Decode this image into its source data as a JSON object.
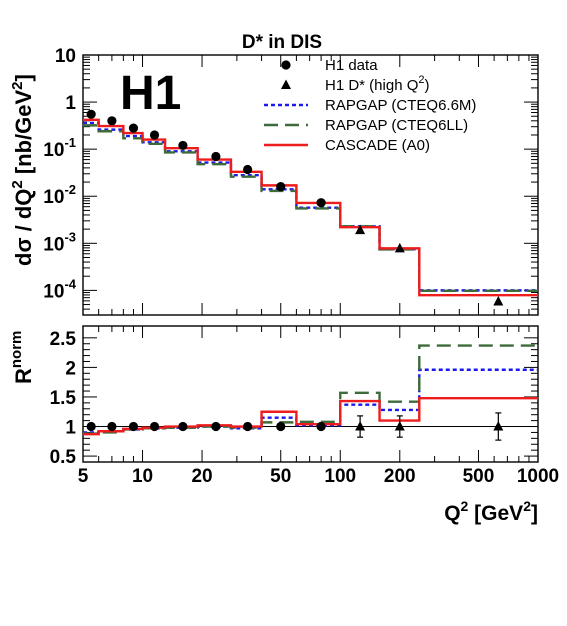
{
  "chart_data": {
    "type": "scatter",
    "title": "D* in DIS",
    "logo": "H1",
    "xlabel": "Q",
    "xlabel_sup": "2",
    "xlabel_unit": " [GeV",
    "xlabel_unit_sup": "2",
    "xlabel_unit_end": "]",
    "xscale": "log",
    "xlim": [
      5,
      1000
    ],
    "x_ticks": [
      5,
      10,
      20,
      50,
      100,
      200,
      500,
      1000
    ],
    "x_tick_labels": [
      "5",
      "10",
      "20",
      "50",
      "100",
      "200",
      "500",
      "1000"
    ],
    "top_panel": {
      "ylabel": "dσ / dQ",
      "ylabel_sup": "2",
      "ylabel_unit": " [nb/GeV",
      "ylabel_unit_sup": "2",
      "ylabel_unit_end": "]",
      "yscale": "log",
      "ylim": [
        3e-05,
        10
      ],
      "y_tick_labels": [
        {
          "base": "10",
          "exp": "",
          "value": 10
        },
        {
          "base": "1",
          "exp": "",
          "value": 1
        },
        {
          "base": "10",
          "exp": "-1",
          "value": 0.1
        },
        {
          "base": "10",
          "exp": "-2",
          "value": 0.01
        },
        {
          "base": "10",
          "exp": "-3",
          "value": 0.001
        },
        {
          "base": "10",
          "exp": "-4",
          "value": 0.0001
        }
      ],
      "bin_edges": [
        5,
        6,
        8,
        10,
        13,
        19,
        28,
        40,
        60,
        100,
        158,
        251,
        1000
      ],
      "series": [
        {
          "name": "H1 data",
          "kind": "points",
          "marker": "circle",
          "color": "#000000",
          "x": [
            5.5,
            7,
            9,
            11.5,
            16,
            23.5,
            34,
            50,
            80
          ],
          "y": [
            0.55,
            0.4,
            0.28,
            0.2,
            0.12,
            0.07,
            0.037,
            0.016,
            0.0073
          ]
        },
        {
          "name": "H1 D* (high Q",
          "name_sup": "2",
          "name_end": ")",
          "kind": "points",
          "marker": "triangle",
          "color": "#000000",
          "x": [
            126,
            200,
            630
          ],
          "y": [
            0.0019,
            0.00078,
            5.8e-05
          ]
        },
        {
          "name": "RAPGAP (CTEQ6.6M)",
          "kind": "histogram",
          "style": "dotted",
          "color": "#1a1aee",
          "values": [
            0.36,
            0.26,
            0.19,
            0.14,
            0.09,
            0.052,
            0.028,
            0.014,
            0.0057,
            0.0023,
            0.00075,
            0.0001
          ]
        },
        {
          "name": "RAPGAP (CTEQ6LL)",
          "kind": "histogram",
          "style": "dashed",
          "color": "#3d6b3a",
          "values": [
            0.32,
            0.24,
            0.17,
            0.13,
            0.085,
            0.048,
            0.026,
            0.013,
            0.0055,
            0.0023,
            0.00074,
            9.8e-05
          ]
        },
        {
          "name": "CASCADE (A0)",
          "kind": "histogram",
          "style": "solid",
          "color": "#ee1c1c",
          "values": [
            0.42,
            0.31,
            0.22,
            0.16,
            0.105,
            0.06,
            0.033,
            0.017,
            0.0072,
            0.0022,
            0.00078,
            7.9e-05
          ]
        }
      ]
    },
    "bottom_panel": {
      "ylabel": "R",
      "ylabel_sup": "norm",
      "yscale": "linear",
      "ylim": [
        0.4,
        2.7
      ],
      "y_ticks": [
        0.5,
        1,
        1.5,
        2,
        2.5
      ],
      "y_tick_labels": [
        "0.5",
        "1",
        "1.5",
        "2",
        "2.5"
      ],
      "reference_line": 1,
      "series": [
        {
          "name": "H1 data",
          "kind": "points",
          "marker": "circle",
          "x": [
            5.5,
            7,
            9,
            11.5,
            16,
            23.5,
            34,
            50,
            80
          ],
          "y": [
            1,
            1,
            1,
            1,
            1,
            1,
            1,
            1,
            1
          ]
        },
        {
          "name": "H1 D* (high Q²)",
          "kind": "points",
          "marker": "triangle",
          "x": [
            126,
            200,
            630
          ],
          "y": [
            1,
            1,
            1
          ],
          "err": [
            0.18,
            0.18,
            0.23
          ]
        },
        {
          "name": "RAPGAP (CTEQ6.6M)",
          "kind": "histogram",
          "values": [
            0.9,
            0.92,
            0.95,
            0.97,
            0.98,
            1.0,
            0.97,
            1.15,
            1.02,
            1.37,
            1.28,
            1.96
          ]
        },
        {
          "name": "RAPGAP (CTEQ6LL)",
          "kind": "histogram",
          "values": [
            0.88,
            0.9,
            0.95,
            0.97,
            0.98,
            1.0,
            0.98,
            1.07,
            1.08,
            1.57,
            1.42,
            2.37
          ]
        },
        {
          "name": "CASCADE (A0)",
          "kind": "histogram",
          "values": [
            0.87,
            0.92,
            0.96,
            0.98,
            1.0,
            1.02,
            1.0,
            1.25,
            1.04,
            1.43,
            1.1,
            1.48
          ]
        }
      ]
    },
    "legend_position": "top-right",
    "grid": false
  }
}
